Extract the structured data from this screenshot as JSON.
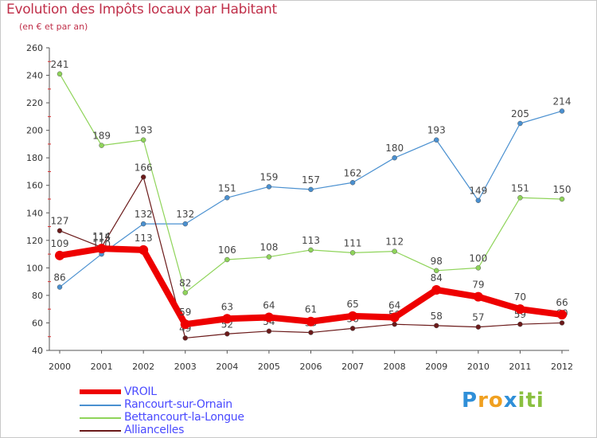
{
  "chart_data": {
    "type": "line",
    "title": "Evolution des Impôts locaux par Habitant",
    "subtitle": "(en € et par an)",
    "xlabel": "",
    "ylabel": "",
    "ylim": [
      40,
      260
    ],
    "y_ticks": [
      40,
      60,
      80,
      100,
      120,
      140,
      160,
      180,
      200,
      220,
      240,
      260
    ],
    "grid": false,
    "legend_position": "bottom-left",
    "x": [
      "2000",
      "2001",
      "2002",
      "2003",
      "2004",
      "2005",
      "2006",
      "2007",
      "2008",
      "2009",
      "2010",
      "2011",
      "2012"
    ],
    "series": [
      {
        "name": "Alliancelles",
        "color": "#6b1a1a",
        "values": [
          127,
          115,
          166,
          49,
          52,
          54,
          53,
          56,
          59,
          58,
          57,
          59,
          60
        ]
      },
      {
        "name": "Bettancourt-la-Longue",
        "color": "#8fd45a",
        "values": [
          241,
          189,
          193,
          82,
          106,
          108,
          113,
          111,
          112,
          98,
          100,
          151,
          150
        ]
      },
      {
        "name": "Rancourt-sur-Ornain",
        "color": "#4a90d0",
        "values": [
          86,
          110,
          132,
          132,
          151,
          159,
          157,
          162,
          180,
          193,
          149,
          205,
          214
        ]
      },
      {
        "name": "VROIL",
        "color": "#ee0000",
        "values": [
          109,
          114,
          113,
          59,
          63,
          64,
          61,
          65,
          64,
          84,
          79,
          70,
          66
        ]
      }
    ],
    "legend_order": [
      "VROIL",
      "Rancourt-sur-Ornain",
      "Bettancourt-la-Longue",
      "Alliancelles"
    ]
  },
  "brand": {
    "letters": [
      "P",
      "r",
      "o",
      "x",
      "i",
      "t",
      "i"
    ],
    "colors": [
      "#2f8fd8",
      "#f0a020",
      "#f0a020",
      "#2f8fd8",
      "#8ac040",
      "#8ac040",
      "#8ac040"
    ]
  }
}
